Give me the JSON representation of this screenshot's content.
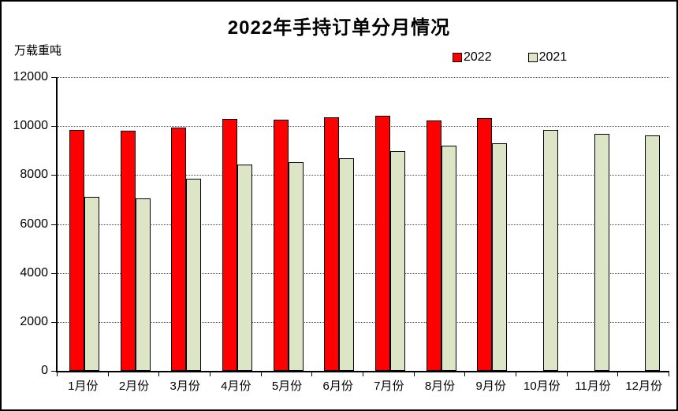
{
  "header": {
    "title": "2022年手持订单分月情况",
    "unit_label": "万载重吨"
  },
  "chart_data": {
    "type": "bar",
    "title": "2022年手持订单分月情况",
    "ylabel": "万载重吨",
    "xlabel": "",
    "categories": [
      "1月份",
      "2月份",
      "3月份",
      "4月份",
      "5月份",
      "6月份",
      "7月份",
      "8月份",
      "9月份",
      "10月份",
      "11月份",
      "12月份"
    ],
    "series": [
      {
        "name": "2022",
        "color": "#ff0000",
        "values": [
          9860,
          9820,
          9940,
          10280,
          10250,
          10350,
          10430,
          10240,
          10320,
          null,
          null,
          null
        ]
      },
      {
        "name": "2021",
        "color": "#dce5c5",
        "values": [
          7110,
          7060,
          7860,
          8440,
          8520,
          8680,
          8980,
          9190,
          9290,
          9860,
          9670,
          9610
        ]
      }
    ],
    "ylim": [
      0,
      12000
    ],
    "yticks": [
      0,
      2000,
      4000,
      6000,
      8000,
      10000,
      12000
    ],
    "grid": "horizontal-dotted",
    "legend_position": "top-right",
    "bar_border_color": "#000000",
    "background_color": "#ffffff"
  }
}
